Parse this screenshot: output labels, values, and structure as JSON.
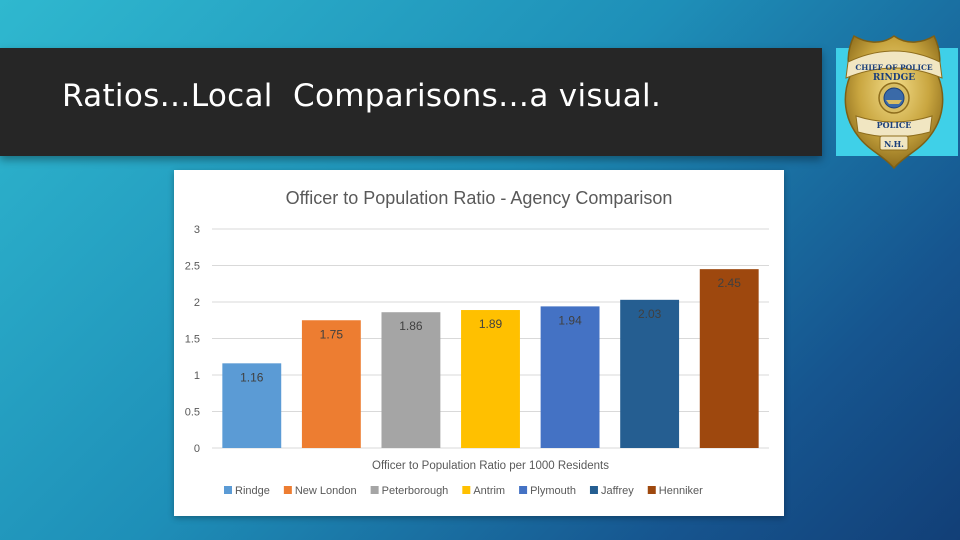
{
  "slide": {
    "title": "Ratios…Local  Comparisons…a visual."
  },
  "badge": {
    "text_top": "CHIEF OF POLICE",
    "text_town": "RINDGE",
    "text_mid": "POLICE",
    "text_state": "N.H.",
    "colors": {
      "gold": "#c9a640",
      "gold_dark": "#9b7a22",
      "blue": "#1b3f7a"
    }
  },
  "chart_data": {
    "type": "bar",
    "title": "Officer to Population Ratio -  Agency Comparison",
    "xlabel": "Officer to Population Ratio per 1000 Residents",
    "ylabel": "",
    "ylim": [
      0,
      3
    ],
    "yticks": [
      "0",
      "0.5",
      "1",
      "1.5",
      "2",
      "2.5",
      "3"
    ],
    "grid": true,
    "legend_position": "bottom",
    "series": [
      {
        "name": "Rindge",
        "value": 1.16,
        "label": "1.16",
        "color": "#5b9bd5"
      },
      {
        "name": "New London",
        "value": 1.75,
        "label": "1.75",
        "color": "#ed7d31"
      },
      {
        "name": "Peterborough",
        "value": 1.86,
        "label": "1.86",
        "color": "#a5a5a5"
      },
      {
        "name": "Antrim",
        "value": 1.89,
        "label": "1.89",
        "color": "#ffc000"
      },
      {
        "name": "Plymouth",
        "value": 1.94,
        "label": "1.94",
        "color": "#4472c4"
      },
      {
        "name": "Jaffrey",
        "value": 2.03,
        "label": "2.03",
        "color": "#255e91"
      },
      {
        "name": "Henniker",
        "value": 2.45,
        "label": "2.45",
        "color": "#9e480e"
      }
    ]
  }
}
